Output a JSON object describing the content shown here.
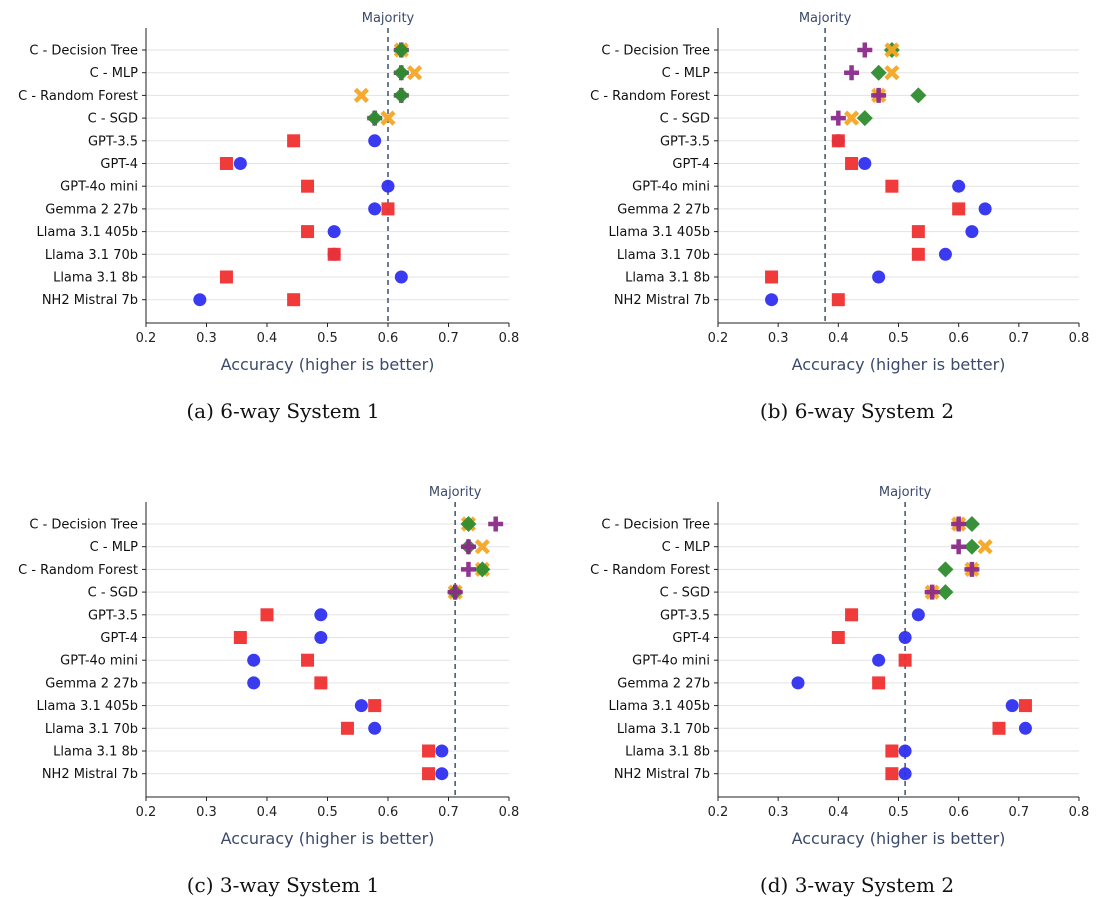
{
  "chart_data": [
    {
      "type": "scatter",
      "caption": "(a) 6-way System 1",
      "xlabel": "Accuracy (higher is better)",
      "xlim": [
        0.2,
        0.8
      ],
      "xticks": [
        "0.2",
        "0.3",
        "0.4",
        "0.5",
        "0.6",
        "0.7",
        "0.8"
      ],
      "grid": "horizontal",
      "majority": {
        "label": "Majority",
        "value": 0.6
      },
      "categories": [
        "C - Decision Tree",
        "C - MLP",
        "C - Random Forest",
        "C - SGD",
        "GPT-3.5",
        "GPT-4",
        "GPT-4o mini",
        "Gemma 2 27b",
        "Llama 3.1 405b",
        "Llama 3.1 70b",
        "Llama 3.1 8b",
        "NH2 Mistral 7b"
      ],
      "series": [
        {
          "marker": "circle",
          "color": "#2f2ff0",
          "values": [
            null,
            null,
            null,
            null,
            0.578,
            0.356,
            0.6,
            0.578,
            0.511,
            0.511,
            0.622,
            0.289
          ]
        },
        {
          "marker": "square",
          "color": "#f03030",
          "values": [
            null,
            null,
            null,
            null,
            0.444,
            0.333,
            0.467,
            0.6,
            0.467,
            0.511,
            0.333,
            0.444
          ]
        },
        {
          "marker": "x",
          "color": "#f5a623",
          "values": [
            0.622,
            0.644,
            0.556,
            0.6,
            null,
            null,
            null,
            null,
            null,
            null,
            null,
            null
          ]
        },
        {
          "marker": "plus",
          "color": "#8b2a8b",
          "values": [
            0.622,
            0.622,
            0.622,
            0.578,
            null,
            null,
            null,
            null,
            null,
            null,
            null,
            null
          ]
        },
        {
          "marker": "diamond",
          "color": "#2e8b2e",
          "values": [
            0.622,
            0.622,
            0.622,
            0.578,
            null,
            null,
            null,
            null,
            null,
            null,
            null,
            null
          ]
        }
      ]
    },
    {
      "type": "scatter",
      "caption": "(b) 6-way System 2",
      "xlabel": "Accuracy (higher is better)",
      "xlim": [
        0.2,
        0.8
      ],
      "xticks": [
        "0.2",
        "0.3",
        "0.4",
        "0.5",
        "0.6",
        "0.7",
        "0.8"
      ],
      "grid": "horizontal",
      "majority": {
        "label": "Majority",
        "value": 0.378
      },
      "categories": [
        "C - Decision Tree",
        "C - MLP",
        "C - Random Forest",
        "C - SGD",
        "GPT-3.5",
        "GPT-4",
        "GPT-4o mini",
        "Gemma 2 27b",
        "Llama 3.1 405b",
        "Llama 3.1 70b",
        "Llama 3.1 8b",
        "NH2 Mistral 7b"
      ],
      "series": [
        {
          "marker": "circle",
          "color": "#2f2ff0",
          "values": [
            null,
            null,
            null,
            null,
            0.4,
            0.444,
            0.6,
            0.644,
            0.622,
            0.578,
            0.467,
            0.289
          ]
        },
        {
          "marker": "square",
          "color": "#f03030",
          "values": [
            null,
            null,
            null,
            null,
            0.4,
            0.422,
            0.489,
            0.6,
            0.533,
            0.533,
            0.289,
            0.4
          ]
        },
        {
          "marker": "diamond",
          "color": "#2e8b2e",
          "values": [
            0.489,
            0.467,
            0.533,
            0.444,
            null,
            null,
            null,
            null,
            null,
            null,
            null,
            null
          ]
        },
        {
          "marker": "x",
          "color": "#f5a623",
          "values": [
            0.489,
            0.489,
            0.467,
            0.422,
            null,
            null,
            null,
            null,
            null,
            null,
            null,
            null
          ]
        },
        {
          "marker": "plus",
          "color": "#8b2a8b",
          "values": [
            0.444,
            0.422,
            0.467,
            0.4,
            null,
            null,
            null,
            null,
            null,
            null,
            null,
            null
          ]
        }
      ]
    },
    {
      "type": "scatter",
      "caption": "(c) 3-way System 1",
      "xlabel": "Accuracy (higher is better)",
      "xlim": [
        0.2,
        0.8
      ],
      "xticks": [
        "0.2",
        "0.3",
        "0.4",
        "0.5",
        "0.6",
        "0.7",
        "0.8"
      ],
      "grid": "horizontal",
      "majority": {
        "label": "Majority",
        "value": 0.711
      },
      "categories": [
        "C - Decision Tree",
        "C - MLP",
        "C - Random Forest",
        "C - SGD",
        "GPT-3.5",
        "GPT-4",
        "GPT-4o mini",
        "Gemma 2 27b",
        "Llama 3.1 405b",
        "Llama 3.1 70b",
        "Llama 3.1 8b",
        "NH2 Mistral 7b"
      ],
      "series": [
        {
          "marker": "circle",
          "color": "#2f2ff0",
          "values": [
            null,
            null,
            null,
            null,
            0.489,
            0.489,
            0.378,
            0.378,
            0.556,
            0.578,
            0.689,
            0.689
          ]
        },
        {
          "marker": "square",
          "color": "#f03030",
          "values": [
            null,
            null,
            null,
            null,
            0.4,
            0.356,
            0.467,
            0.489,
            0.578,
            0.533,
            0.667,
            0.667
          ]
        },
        {
          "marker": "x",
          "color": "#f5a623",
          "values": [
            0.733,
            0.756,
            0.756,
            0.711,
            null,
            null,
            null,
            null,
            null,
            null,
            null,
            null
          ]
        },
        {
          "marker": "diamond",
          "color": "#2e8b2e",
          "values": [
            0.733,
            0.733,
            0.756,
            0.711,
            null,
            null,
            null,
            null,
            null,
            null,
            null,
            null
          ]
        },
        {
          "marker": "plus",
          "color": "#8b2a8b",
          "values": [
            0.778,
            0.733,
            0.733,
            0.711,
            null,
            null,
            null,
            null,
            null,
            null,
            null,
            null
          ]
        }
      ]
    },
    {
      "type": "scatter",
      "caption": "(d) 3-way System 2",
      "xlabel": "Accuracy (higher is better)",
      "xlim": [
        0.2,
        0.8
      ],
      "xticks": [
        "0.2",
        "0.3",
        "0.4",
        "0.5",
        "0.6",
        "0.7",
        "0.8"
      ],
      "grid": "horizontal",
      "majority": {
        "label": "Majority",
        "value": 0.511
      },
      "categories": [
        "C - Decision Tree",
        "C - MLP",
        "C - Random Forest",
        "C - SGD",
        "GPT-3.5",
        "GPT-4",
        "GPT-4o mini",
        "Gemma 2 27b",
        "Llama 3.1 405b",
        "Llama 3.1 70b",
        "Llama 3.1 8b",
        "NH2 Mistral 7b"
      ],
      "series": [
        {
          "marker": "circle",
          "color": "#2f2ff0",
          "values": [
            null,
            null,
            null,
            null,
            0.533,
            0.511,
            0.467,
            0.333,
            0.689,
            0.711,
            0.511,
            0.511
          ]
        },
        {
          "marker": "square",
          "color": "#f03030",
          "values": [
            null,
            null,
            null,
            null,
            0.422,
            0.4,
            0.511,
            0.467,
            0.711,
            0.667,
            0.489,
            0.489
          ]
        },
        {
          "marker": "diamond",
          "color": "#2e8b2e",
          "values": [
            0.622,
            0.622,
            0.578,
            0.578,
            null,
            null,
            null,
            null,
            null,
            null,
            null,
            null
          ]
        },
        {
          "marker": "x",
          "color": "#f5a623",
          "values": [
            0.6,
            0.644,
            0.622,
            0.556,
            null,
            null,
            null,
            null,
            null,
            null,
            null,
            null
          ]
        },
        {
          "marker": "plus",
          "color": "#8b2a8b",
          "values": [
            0.6,
            0.6,
            0.622,
            0.556,
            null,
            null,
            null,
            null,
            null,
            null,
            null,
            null
          ]
        }
      ]
    }
  ]
}
